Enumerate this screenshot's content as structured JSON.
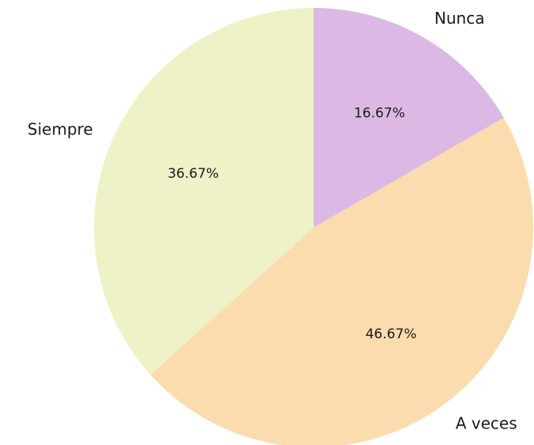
{
  "chart_data": {
    "type": "pie",
    "title": "",
    "slices": [
      {
        "label": "Nunca",
        "value": 16.67,
        "pct_label": "16.67%",
        "color": "#dbb9e4"
      },
      {
        "label": "A veces",
        "value": 46.67,
        "pct_label": "46.67%",
        "color": "#fadcae"
      },
      {
        "label": "Siempre",
        "value": 36.67,
        "pct_label": "36.67%",
        "color": "#eef2c6"
      }
    ],
    "start_angle": "12 o'clock",
    "direction": "clockwise",
    "legend": "none"
  }
}
